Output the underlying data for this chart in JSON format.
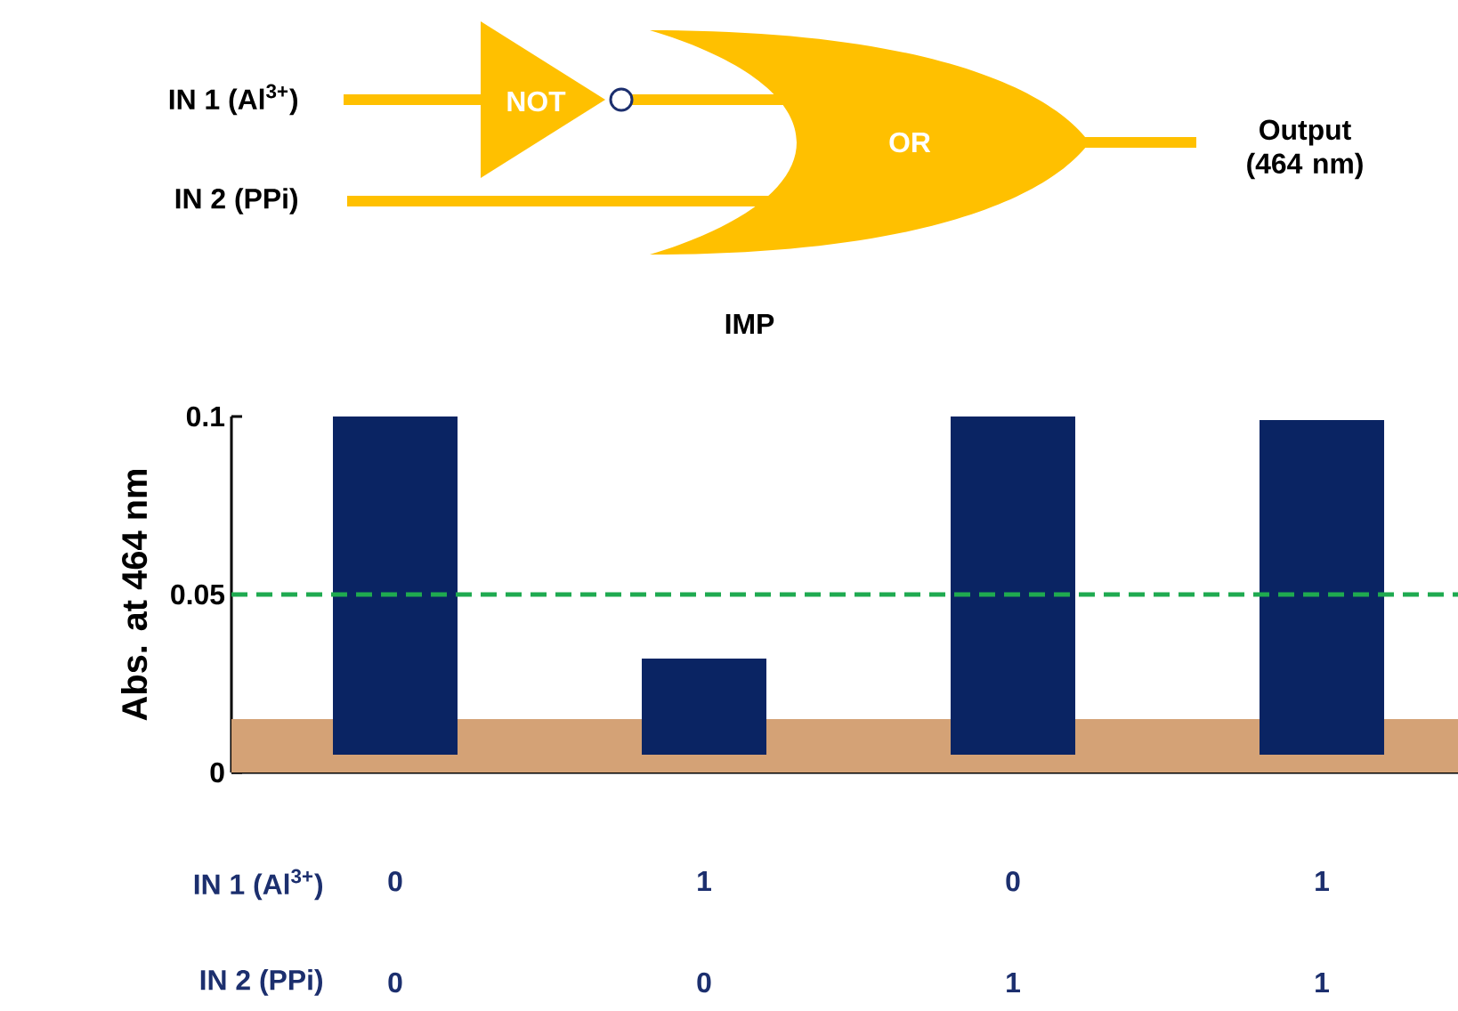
{
  "chart_data": {
    "type": "bar",
    "ylabel": "Abs. at 464 nm",
    "categories": [
      "0",
      "1",
      "0",
      "1"
    ],
    "values": [
      0.095,
      0.027,
      0.095,
      0.094
    ],
    "base": [
      0.005,
      0.005,
      0.005,
      0.005
    ],
    "color": "#0a2463",
    "ylim": [
      0,
      0.1
    ],
    "yticks": [
      0,
      0.05,
      0.1
    ],
    "bands": [
      {
        "axis": "y",
        "from": 0,
        "to": 0.015,
        "color": "#d4a276"
      }
    ],
    "ref_lines": [
      {
        "axis": "y",
        "value": 0.05,
        "color": "#1faa50",
        "line_style": "dashed"
      }
    ],
    "annotations": [
      "IN 1 (Al$^{3+}$)",
      "IN 2 (PPi)",
      "NOT",
      "OR",
      "Output (464 nm)",
      "IMP",
      "IN 1 (Al$^{3+}$)",
      "IN 2 (PPi)",
      "0",
      "0",
      "1",
      "1"
    ]
  }
}
